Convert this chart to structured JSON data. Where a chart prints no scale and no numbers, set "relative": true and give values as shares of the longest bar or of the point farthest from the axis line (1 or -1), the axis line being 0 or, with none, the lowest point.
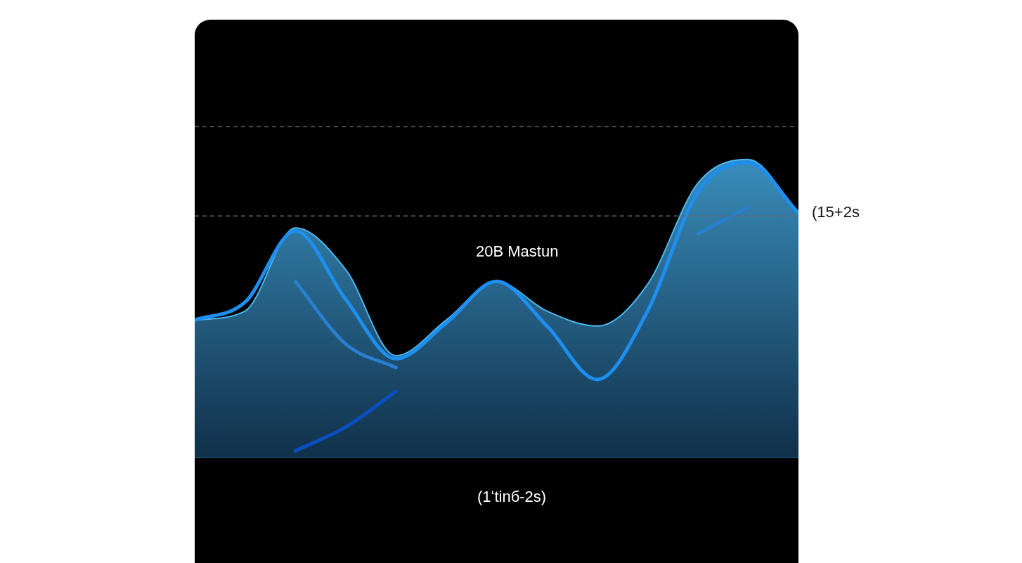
{
  "chart_data": {
    "type": "area",
    "relative": true,
    "categories": [
      null,
      null,
      null,
      null,
      null,
      null,
      null,
      null,
      null,
      null,
      null,
      null,
      null
    ],
    "series": [
      {
        "type": "area",
        "color": "#4cb8f0",
        "values": [
          0.46,
          0.49,
          0.77,
          0.63,
          0.34,
          0.46,
          0.59,
          0.49,
          0.44,
          0.58,
          0.92,
          1,
          0.82
        ]
      },
      {
        "type": "line",
        "color": "#1e8ff0",
        "values": [
          0.46,
          0.52,
          0.76,
          0.53,
          0.33,
          0.45,
          0.59,
          0.44,
          0.26,
          0.49,
          0.89,
          0.99,
          0.82
        ]
      },
      {
        "type": "line",
        "color": "#2a7fd0",
        "line_style": "dotted",
        "values": [
          null,
          null,
          0.59,
          0.38,
          0.3,
          null,
          null,
          null,
          null,
          null,
          0.75,
          0.84,
          null
        ]
      },
      {
        "type": "line",
        "color": "#0a4fc0",
        "values": [
          null,
          null,
          0.02,
          0.1,
          0.22,
          null,
          null,
          null,
          null,
          null,
          null,
          null,
          null
        ]
      }
    ],
    "ref_lines": [
      {
        "axis": "y",
        "value": 1.11,
        "color": "#666666",
        "line_style": "dashed"
      },
      {
        "axis": "y",
        "value": 0.81,
        "color": "#666666",
        "line_style": "dashed"
      }
    ],
    "annotations": [
      "20B Mastun",
      "(15+2s",
      "(1ʻtinб-2s)"
    ],
    "legend": false
  }
}
